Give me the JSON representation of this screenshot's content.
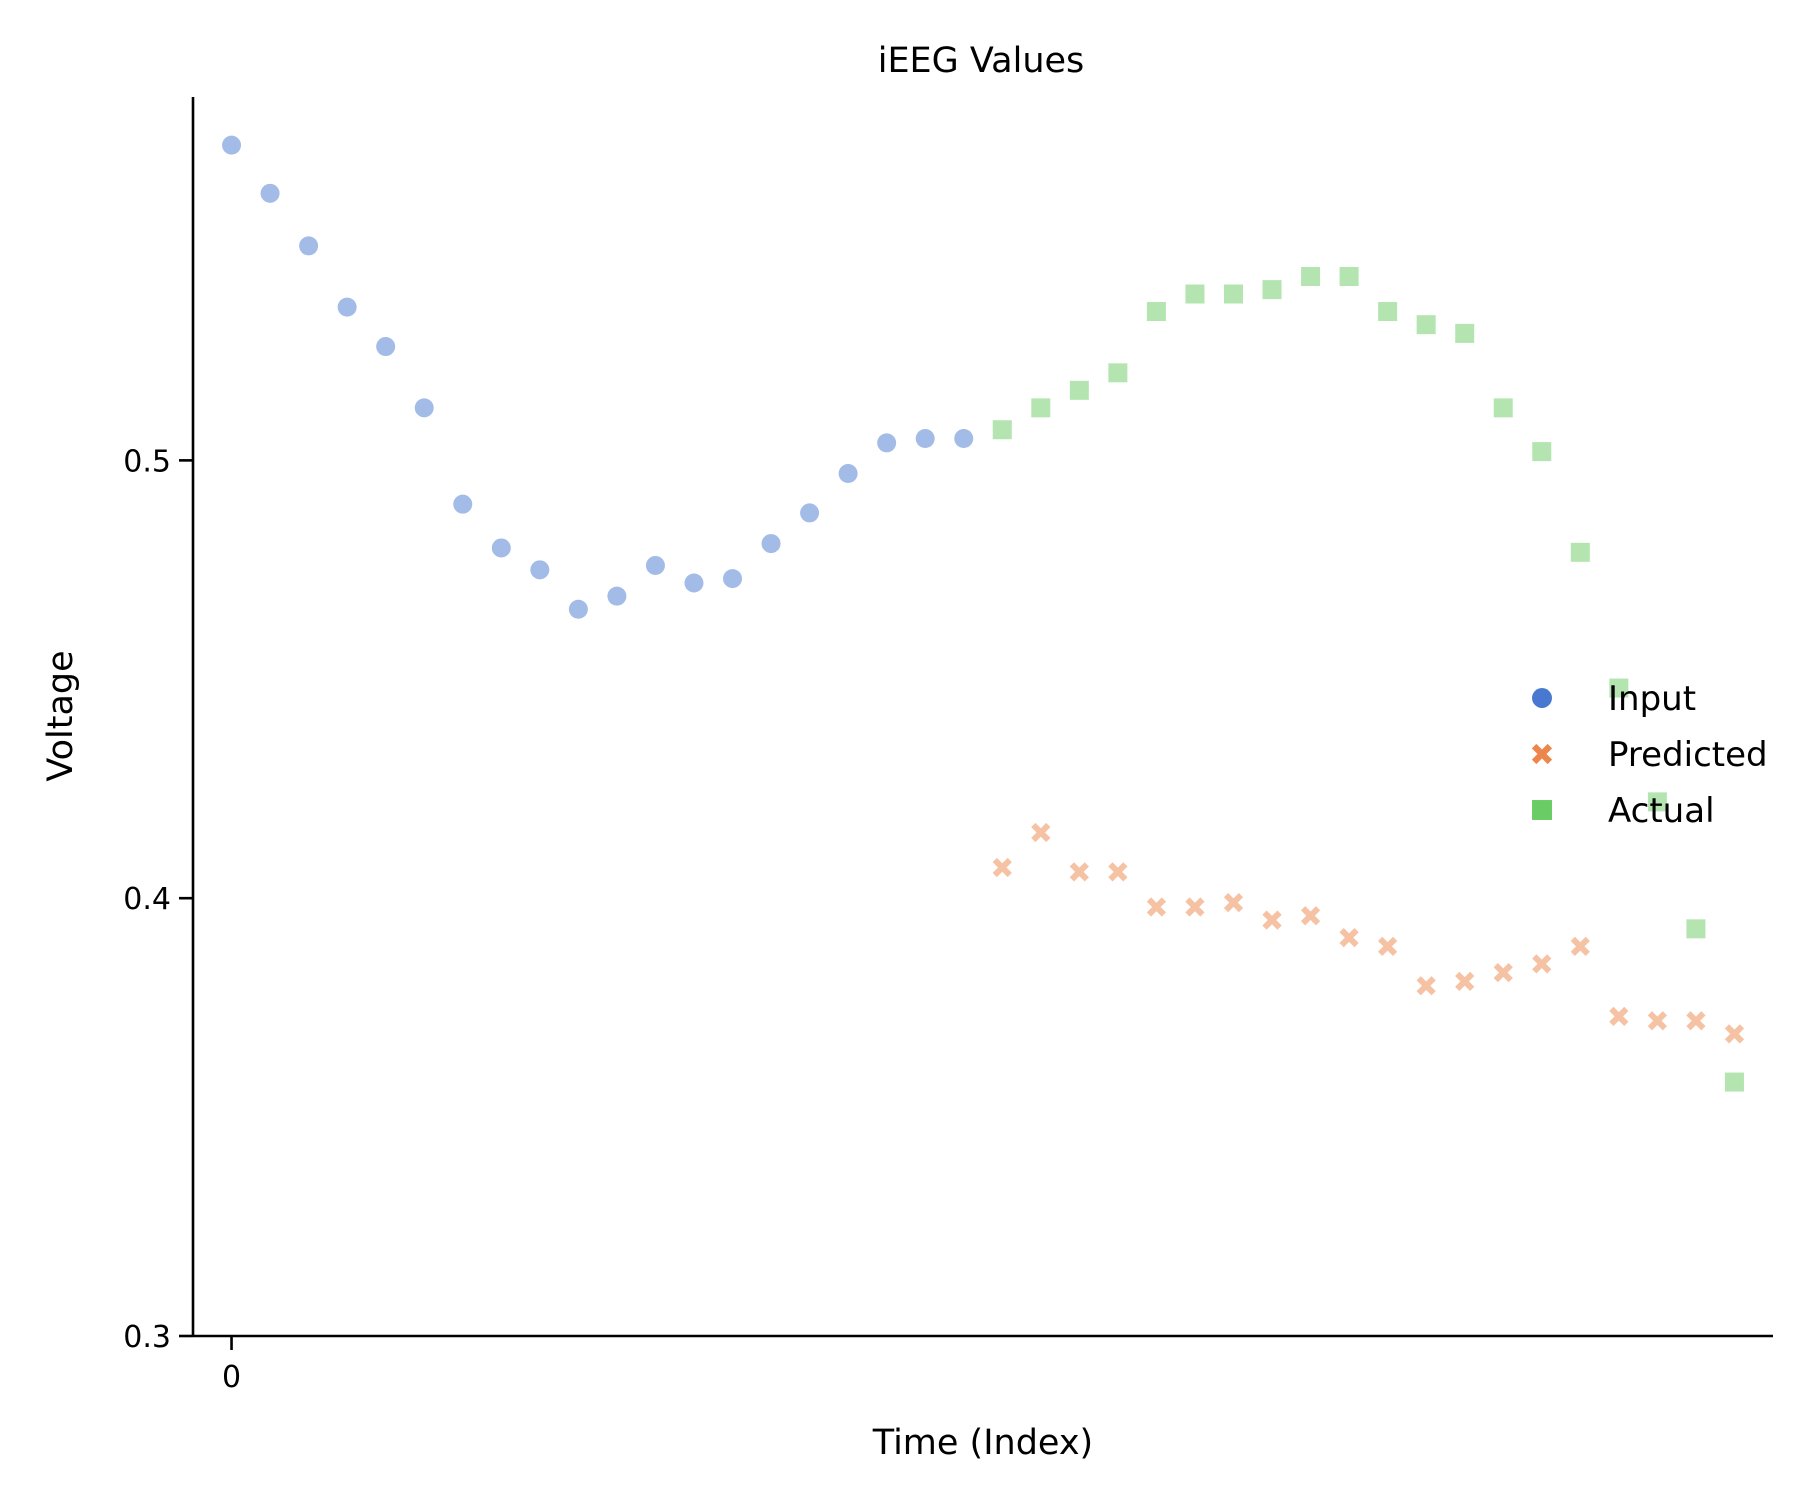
{
  "chart_data": {
    "type": "scatter",
    "title": "iEEG Values",
    "xlabel": "Time (Index)",
    "ylabel": "Voltage",
    "xlim": [
      -1,
      40
    ],
    "ylim": [
      0.3,
      0.583
    ],
    "x_ticks": [
      0
    ],
    "x_tick_labels": [
      "0"
    ],
    "y_ticks": [
      0.3,
      0.4,
      0.5
    ],
    "y_tick_labels": [
      "0.3",
      "0.4",
      "0.5"
    ],
    "grid": false,
    "legend_position": "center-right",
    "series": [
      {
        "name": "Input",
        "marker": "circle",
        "color": "#4878d0",
        "x": [
          0,
          1,
          2,
          3,
          4,
          5,
          6,
          7,
          8,
          9,
          10,
          11,
          12,
          13,
          14,
          15,
          16,
          17,
          18,
          19
        ],
        "y": [
          0.572,
          0.561,
          0.549,
          0.535,
          0.526,
          0.512,
          0.49,
          0.48,
          0.475,
          0.466,
          0.469,
          0.476,
          0.472,
          0.473,
          0.481,
          0.488,
          0.497,
          0.504,
          0.505,
          0.505
        ]
      },
      {
        "name": "Predicted",
        "marker": "x",
        "color": "#ee854a",
        "x": [
          20,
          21,
          22,
          23,
          24,
          25,
          26,
          27,
          28,
          29,
          30,
          31,
          32,
          33,
          34,
          35,
          36,
          37,
          38,
          39
        ],
        "y": [
          0.407,
          0.415,
          0.406,
          0.406,
          0.398,
          0.398,
          0.399,
          0.395,
          0.396,
          0.391,
          0.389,
          0.38,
          0.381,
          0.383,
          0.385,
          0.389,
          0.373,
          0.372,
          0.372,
          0.369
        ]
      },
      {
        "name": "Actual",
        "marker": "square",
        "color": "#6acc64",
        "x": [
          20,
          21,
          22,
          23,
          24,
          25,
          26,
          27,
          28,
          29,
          30,
          31,
          32,
          33,
          34,
          35,
          36,
          37,
          38,
          39
        ],
        "y": [
          0.507,
          0.512,
          0.516,
          0.52,
          0.534,
          0.538,
          0.538,
          0.539,
          0.542,
          0.542,
          0.534,
          0.531,
          0.529,
          0.512,
          0.502,
          0.479,
          0.448,
          0.422,
          0.393,
          0.358
        ]
      }
    ]
  }
}
